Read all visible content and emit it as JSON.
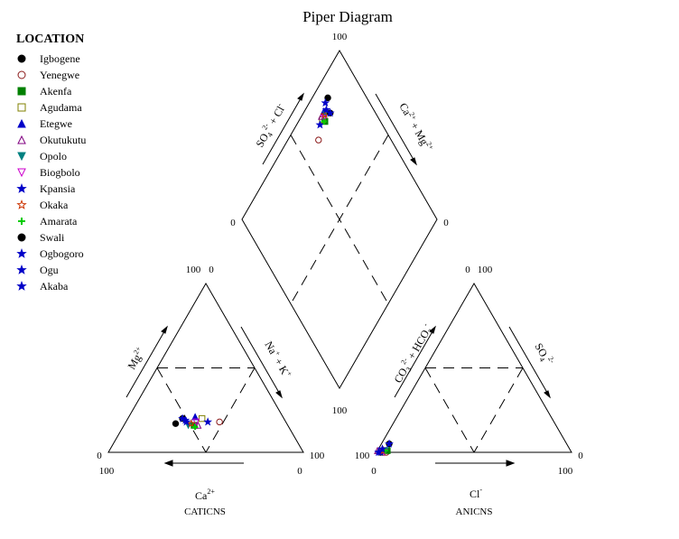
{
  "chart_data": {
    "type": "scatter",
    "title": "Piper Diagram",
    "legend_title": "LOCATION",
    "legend_position": "left",
    "axis_ticks": {
      "diamond_top": "100",
      "diamond_left": "0",
      "diamond_right": "0",
      "diamond_bottom": "100",
      "cat_top_left": "100",
      "cat_top_right": "0",
      "cat_left": "0",
      "cat_right": "100",
      "cat_bottom_left": "100",
      "cat_bottom_right": "0",
      "an_top_left": "0",
      "an_top_right": "100",
      "an_left": "100",
      "an_right": "0",
      "an_bottom_left": "0",
      "an_bottom_right": "100"
    },
    "axis_labels": {
      "diamond_left_base": "SO",
      "diamond_left_sub": "4",
      "diamond_left_sup": "2-",
      "diamond_left_tail": " + Cl",
      "diamond_left_tail_sup": "-",
      "diamond_right_base": "Ca",
      "diamond_right_sup": "2+",
      "diamond_right_mid": " + Mg",
      "diamond_right_sup2": "2+",
      "cat_left_base": "Mg",
      "cat_left_sup": "2+",
      "cat_right_base": "Na",
      "cat_right_sup": "+",
      "cat_right_mid": " + K",
      "cat_right_sup2": "+",
      "cat_bottom_base": "Ca",
      "cat_bottom_sup": "2+",
      "cat_caption": "CATICNS",
      "an_left_base": "CO",
      "an_left_sub": "3",
      "an_left_sup": "2-",
      "an_left_mid": " + HCO",
      "an_left_sub2": "3",
      "an_left_sup2": "-",
      "an_right_base": "SO",
      "an_right_sub": "4",
      "an_right_sup": "2-",
      "an_bottom_base": "Cl",
      "an_bottom_sup": "-",
      "an_caption": "ANICNS"
    },
    "series": [
      {
        "name": "Igbogene",
        "marker": "circle",
        "fill": "#000000",
        "stroke": "#000000"
      },
      {
        "name": "Yenegwe",
        "marker": "circle-open",
        "fill": "none",
        "stroke": "#8b1a1a"
      },
      {
        "name": "Akenfa",
        "marker": "square",
        "fill": "#008000",
        "stroke": "#008000"
      },
      {
        "name": "Agudama",
        "marker": "square-open",
        "fill": "none",
        "stroke": "#808000"
      },
      {
        "name": "Etegwe",
        "marker": "triangle",
        "fill": "#0000c8",
        "stroke": "#0000c8"
      },
      {
        "name": "Okutukutu",
        "marker": "triangle-open",
        "fill": "none",
        "stroke": "#800080"
      },
      {
        "name": "Opolo",
        "marker": "triangle-down",
        "fill": "#008080",
        "stroke": "#008080"
      },
      {
        "name": "Biogbolo",
        "marker": "triangle-down-open",
        "fill": "none",
        "stroke": "#cc00cc"
      },
      {
        "name": "Kpansia",
        "marker": "star",
        "fill": "#0000c8",
        "stroke": "#0000c8"
      },
      {
        "name": "Okaka",
        "marker": "star-open",
        "fill": "none",
        "stroke": "#cc3300"
      },
      {
        "name": "Amarata",
        "marker": "plus",
        "fill": "#00cc00",
        "stroke": "#00cc00"
      },
      {
        "name": "Swali",
        "marker": "circle",
        "fill": "#000000",
        "stroke": "#000000"
      },
      {
        "name": "Ogbogoro",
        "marker": "star",
        "fill": "#0000c8",
        "stroke": "#0000c8"
      },
      {
        "name": "Ogu",
        "marker": "star",
        "fill": "#0000c8",
        "stroke": "#0000c8"
      },
      {
        "name": "Akaba",
        "marker": "star",
        "fill": "#0000c8",
        "stroke": "#0000c8"
      }
    ],
    "points": [
      {
        "name": "Igbogene",
        "cation": [
          17,
          26,
          57
        ],
        "anion": [
          0,
          2,
          98
        ]
      },
      {
        "name": "Yenegwe",
        "cation": [
          18,
          48,
          34
        ],
        "anion": [
          0,
          5,
          95
        ]
      },
      {
        "name": "Akenfa",
        "cation": [
          16,
          36,
          48
        ],
        "anion": [
          1,
          5,
          94
        ]
      },
      {
        "name": "Agudama",
        "cation": [
          20,
          38,
          42
        ],
        "anion": [
          0,
          3,
          97
        ]
      },
      {
        "name": "Etegwe",
        "cation": [
          21,
          34,
          45
        ],
        "anion": [
          1,
          1,
          98
        ]
      },
      {
        "name": "Okutukutu",
        "cation": [
          16,
          38,
          46
        ],
        "anion": [
          1,
          0,
          99
        ]
      },
      {
        "name": "Opolo",
        "cation": [
          16,
          33,
          51
        ],
        "anion": [
          1,
          4,
          95
        ]
      },
      {
        "name": "Biogbolo",
        "cation": [
          18,
          36,
          46
        ],
        "anion": [
          0,
          4,
          96
        ]
      },
      {
        "name": "Kpansia",
        "cation": [
          18,
          42,
          40
        ],
        "anion": [
          0,
          2,
          98
        ]
      },
      {
        "name": "Okaka",
        "cation": [
          17,
          34,
          49
        ],
        "anion": [
          1,
          3,
          96
        ]
      },
      {
        "name": "Amarata",
        "cation": [
          15,
          37,
          48
        ],
        "anion": [
          1,
          4,
          95
        ]
      },
      {
        "name": "Swali",
        "cation": [
          20,
          28,
          52
        ],
        "anion": [
          5,
          4,
          91
        ]
      },
      {
        "name": "Ogbogoro",
        "cation": [
          18,
          31,
          51
        ],
        "anion": [
          2,
          2,
          96
        ]
      },
      {
        "name": "Ogu",
        "cation": [
          20,
          28,
          52
        ],
        "anion": [
          5,
          4,
          91
        ]
      },
      {
        "name": "Akaba",
        "cation": [
          19,
          30,
          51
        ],
        "anion": [
          0,
          1,
          99
        ]
      }
    ]
  }
}
